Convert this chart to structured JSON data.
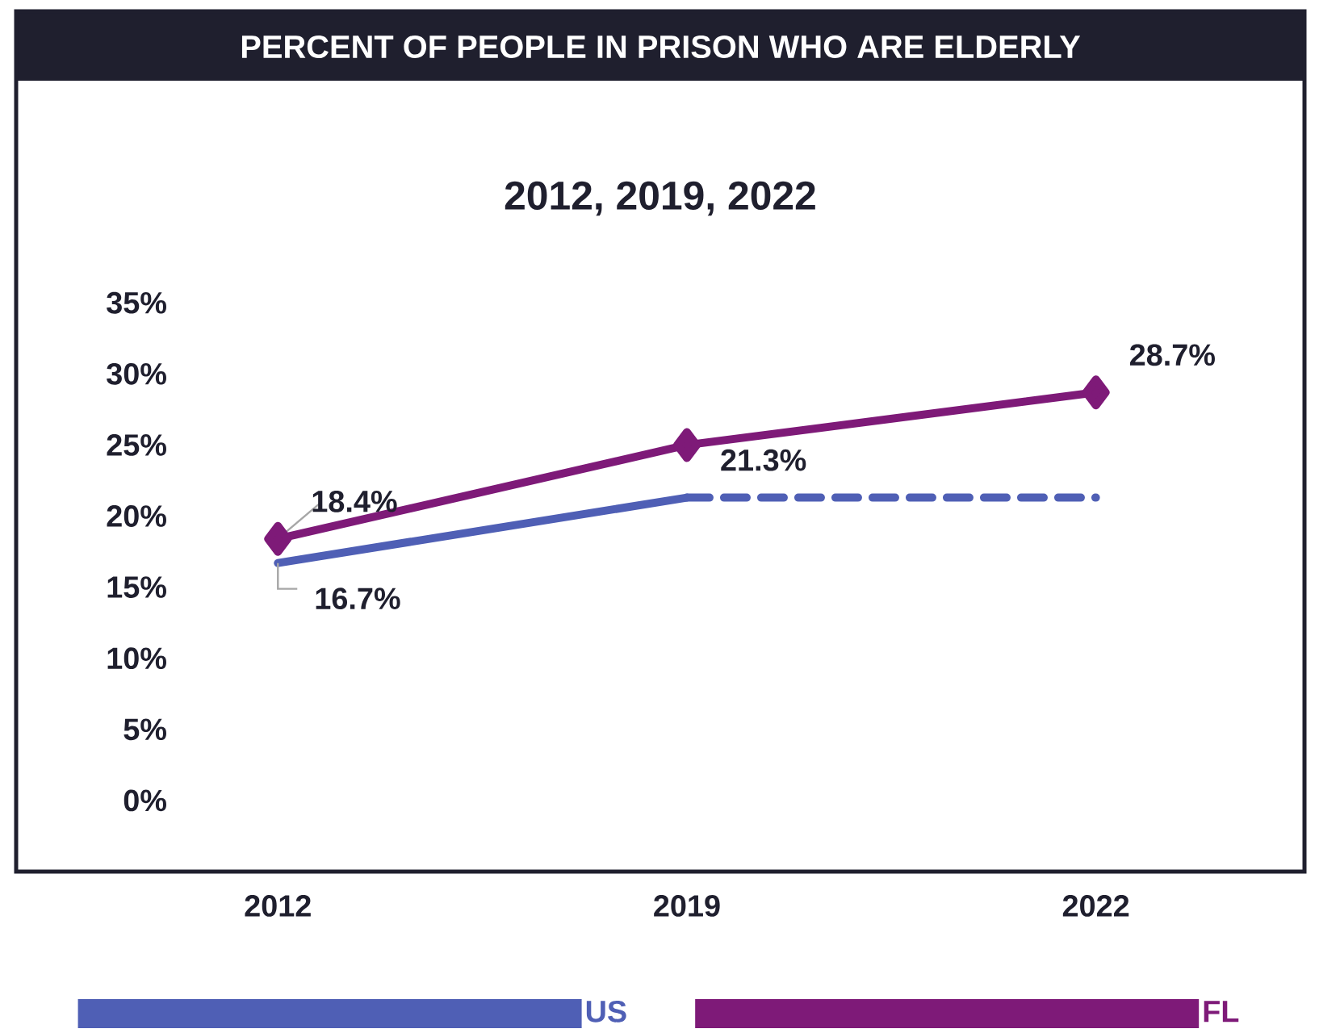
{
  "chart_data": {
    "type": "line",
    "title": "PERCENT OF PEOPLE IN PRISON WHO ARE ELDERLY",
    "subtitle": "2012, 2019, 2022",
    "categories": [
      "2012",
      "2019",
      "2022"
    ],
    "series": [
      {
        "name": "US",
        "color": "#4f5fb5",
        "values": [
          16.7,
          21.3,
          null
        ],
        "value_labels": [
          "16.7%",
          "21.3%",
          null
        ]
      },
      {
        "color": "#4f5fb5",
        "values": [
          null,
          21.3,
          21.3
        ],
        "line_style": "dashed"
      },
      {
        "name": "FL",
        "color": "#7e1a78",
        "values": [
          18.4,
          25,
          28.7
        ],
        "marker": "diamond",
        "value_labels": [
          "18.4%",
          null,
          "28.7%"
        ]
      }
    ],
    "ylim": [
      -5,
      35
    ],
    "yticks": [
      {
        "value": 0,
        "label": "0%"
      },
      {
        "value": 5,
        "label": "5%"
      },
      {
        "value": 10,
        "label": "10%"
      },
      {
        "value": 15,
        "label": "15%"
      },
      {
        "value": 20,
        "label": "20%"
      },
      {
        "value": 25,
        "label": "25%"
      },
      {
        "value": 30,
        "label": "30%"
      },
      {
        "value": 35,
        "label": "35%"
      }
    ],
    "line_style": "solid",
    "marker": "none",
    "grid": false,
    "legend": "bottom"
  }
}
